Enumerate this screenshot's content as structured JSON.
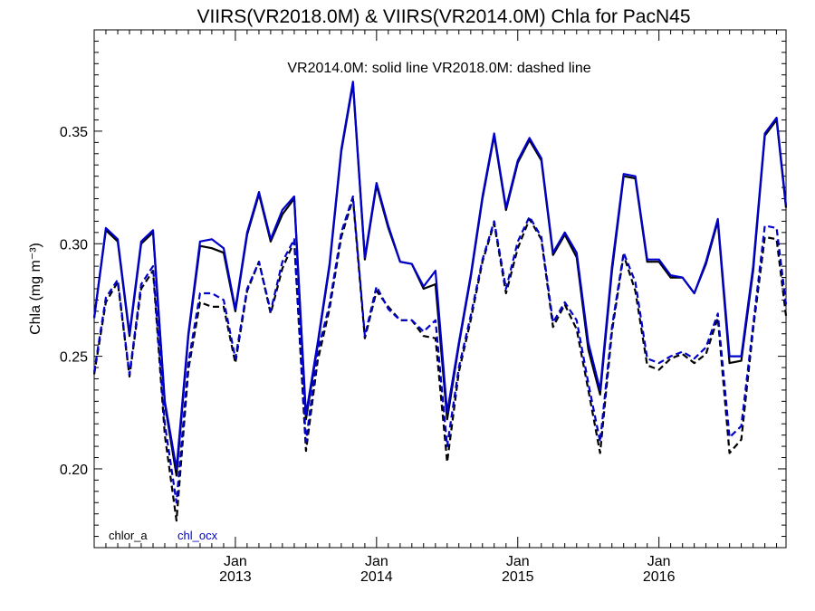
{
  "chart_data": {
    "type": "line",
    "title": "VIIRS(VR2018.0M) & VIIRS(VR2014.0M)  Chla for PacN45",
    "subtitle": "VR2014.0M: solid line   VR2018.0M: dashed line",
    "ylabel": "Chla (mg m⁻³)",
    "xlabel": "",
    "ylim": [
      0.165,
      0.395
    ],
    "yticks": [
      0.2,
      0.25,
      0.3,
      0.35
    ],
    "ytick_labels": [
      "0.20",
      "0.25",
      "0.30",
      "0.35"
    ],
    "xlim": [
      2012.0,
      2016.9
    ],
    "xticks": [
      {
        "x": 2013.0,
        "month": "Jan",
        "year": "2013"
      },
      {
        "x": 2014.0,
        "month": "Jan",
        "year": "2014"
      },
      {
        "x": 2015.0,
        "month": "Jan",
        "year": "2015"
      },
      {
        "x": 2016.0,
        "month": "Jan",
        "year": "2016"
      }
    ],
    "grid": false,
    "legend": [
      {
        "label": "chlor_a",
        "color": "#000000"
      },
      {
        "label": "chl_ocx",
        "color": "#0000cc"
      }
    ],
    "legend_position": "bottom-left",
    "x": [
      2012.0,
      2012.083,
      2012.167,
      2012.25,
      2012.333,
      2012.417,
      2012.5,
      2012.583,
      2012.667,
      2012.75,
      2012.833,
      2012.917,
      2013.0,
      2013.083,
      2013.167,
      2013.25,
      2013.333,
      2013.417,
      2013.5,
      2013.583,
      2013.667,
      2013.75,
      2013.833,
      2013.917,
      2014.0,
      2014.083,
      2014.167,
      2014.25,
      2014.333,
      2014.417,
      2014.5,
      2014.583,
      2014.667,
      2014.75,
      2014.833,
      2014.917,
      2015.0,
      2015.083,
      2015.167,
      2015.25,
      2015.333,
      2015.417,
      2015.5,
      2015.583,
      2015.667,
      2015.75,
      2015.833,
      2015.917,
      2016.0,
      2016.083,
      2016.167,
      2016.25,
      2016.333,
      2016.417,
      2016.5,
      2016.583,
      2016.667,
      2016.75,
      2016.833,
      2016.9
    ],
    "series": [
      {
        "name": "chlor_a",
        "version": "VR2014.0M",
        "style": "solid",
        "color": "#000000",
        "values": [
          0.267,
          0.306,
          0.301,
          0.259,
          0.3,
          0.305,
          0.229,
          0.197,
          0.259,
          0.299,
          0.298,
          0.296,
          0.27,
          0.304,
          0.322,
          0.301,
          0.313,
          0.32,
          0.222,
          0.255,
          0.29,
          0.341,
          0.371,
          0.293,
          0.326,
          0.307,
          0.292,
          0.291,
          0.28,
          0.282,
          0.222,
          0.255,
          0.285,
          0.32,
          0.348,
          0.315,
          0.336,
          0.346,
          0.337,
          0.295,
          0.304,
          0.294,
          0.253,
          0.233,
          0.288,
          0.33,
          0.329,
          0.292,
          0.292,
          0.285,
          0.285,
          0.278,
          0.291,
          0.31,
          0.247,
          0.248,
          0.288,
          0.348,
          0.355,
          0.316
        ]
      },
      {
        "name": "chl_ocx",
        "version": "VR2014.0M",
        "style": "solid",
        "color": "#0000cc",
        "values": [
          0.267,
          0.307,
          0.302,
          0.26,
          0.301,
          0.306,
          0.23,
          0.2,
          0.26,
          0.301,
          0.302,
          0.298,
          0.271,
          0.305,
          0.323,
          0.302,
          0.315,
          0.321,
          0.224,
          0.256,
          0.291,
          0.342,
          0.372,
          0.294,
          0.327,
          0.308,
          0.292,
          0.291,
          0.281,
          0.288,
          0.225,
          0.256,
          0.286,
          0.321,
          0.349,
          0.316,
          0.337,
          0.347,
          0.338,
          0.296,
          0.305,
          0.296,
          0.256,
          0.235,
          0.29,
          0.331,
          0.33,
          0.293,
          0.293,
          0.286,
          0.285,
          0.278,
          0.292,
          0.311,
          0.25,
          0.25,
          0.29,
          0.349,
          0.356,
          0.317
        ]
      },
      {
        "name": "chlor_a",
        "version": "VR2018.0M",
        "style": "dashed",
        "color": "#000000",
        "values": [
          0.242,
          0.274,
          0.283,
          0.241,
          0.28,
          0.288,
          0.215,
          0.177,
          0.244,
          0.274,
          0.272,
          0.272,
          0.247,
          0.279,
          0.292,
          0.269,
          0.289,
          0.301,
          0.208,
          0.248,
          0.271,
          0.303,
          0.32,
          0.258,
          0.279,
          0.272,
          0.266,
          0.266,
          0.259,
          0.258,
          0.203,
          0.243,
          0.266,
          0.292,
          0.309,
          0.278,
          0.298,
          0.311,
          0.302,
          0.263,
          0.273,
          0.262,
          0.235,
          0.207,
          0.261,
          0.295,
          0.279,
          0.246,
          0.244,
          0.249,
          0.251,
          0.247,
          0.251,
          0.267,
          0.207,
          0.213,
          0.262,
          0.303,
          0.302,
          0.268
        ]
      },
      {
        "name": "chl_ocx",
        "version": "VR2018.0M",
        "style": "dashed",
        "color": "#0000cc",
        "values": [
          0.243,
          0.276,
          0.284,
          0.242,
          0.282,
          0.29,
          0.22,
          0.185,
          0.247,
          0.278,
          0.278,
          0.275,
          0.249,
          0.28,
          0.292,
          0.27,
          0.292,
          0.302,
          0.212,
          0.252,
          0.273,
          0.305,
          0.321,
          0.259,
          0.281,
          0.271,
          0.266,
          0.266,
          0.261,
          0.266,
          0.21,
          0.245,
          0.268,
          0.293,
          0.31,
          0.28,
          0.301,
          0.312,
          0.303,
          0.265,
          0.274,
          0.266,
          0.238,
          0.212,
          0.263,
          0.296,
          0.283,
          0.249,
          0.247,
          0.25,
          0.252,
          0.249,
          0.254,
          0.269,
          0.214,
          0.219,
          0.264,
          0.308,
          0.307,
          0.273
        ]
      }
    ]
  }
}
